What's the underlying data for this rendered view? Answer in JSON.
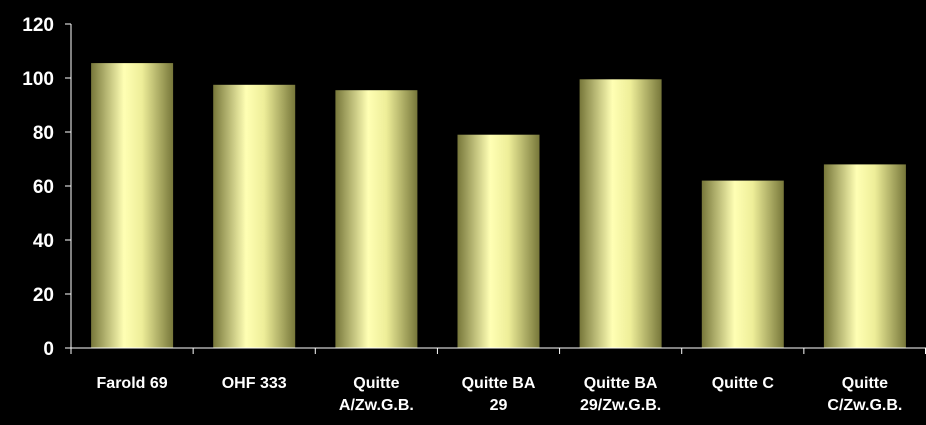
{
  "chart_data": {
    "type": "bar",
    "title": "",
    "xlabel": "",
    "ylabel": "",
    "ylim": [
      0,
      120
    ],
    "yticks": [
      0,
      20,
      40,
      60,
      80,
      100,
      120
    ],
    "grid": false,
    "legend": "none",
    "categories": [
      [
        "Farold 69"
      ],
      [
        "OHF 333"
      ],
      [
        "Quitte",
        "A/Zw.G.B."
      ],
      [
        "Quitte BA",
        "29"
      ],
      [
        "Quitte BA",
        "29/Zw.G.B."
      ],
      [
        "Quitte C"
      ],
      [
        "Quitte",
        "C/Zw.G.B."
      ]
    ],
    "values": [
      105.5,
      97.5,
      95.5,
      79,
      99.5,
      62,
      68
    ],
    "colors": {
      "background": "#000000",
      "axis": "#ffffff",
      "text": "#ffffff",
      "bar_light": "#ffffb4",
      "bar_mid": "#eeee99",
      "bar_dark": "#77773a"
    }
  }
}
